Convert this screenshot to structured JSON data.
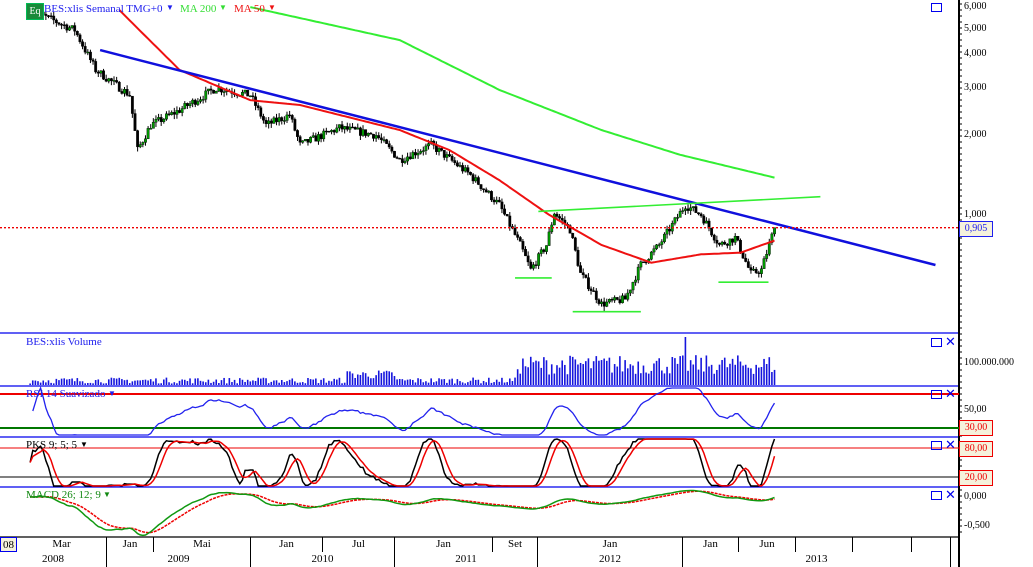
{
  "header": {
    "logo": "Eq",
    "title": "BES:xlis Semanal TMG+0",
    "ma200_label": "MA 200",
    "ma50_label": "MA 50"
  },
  "colors": {
    "up": "#009900",
    "down": "#000000",
    "ma200": "#33ee33",
    "ma50": "#ee1111",
    "trend": "#1010dd",
    "panel_border": "#0000ee"
  },
  "panels": {
    "volume": "BES:xlis Volume",
    "rsi": "RSI 14 Suavizado",
    "pks": "PKS 9; 5; 5",
    "macd": "MACD 26; 12; 9"
  },
  "price_axis": [
    "6,000",
    "5,000",
    "4,000",
    "3,000",
    "2,000",
    "1,000"
  ],
  "last_price": "0,905",
  "volume_axis": "100.000.000",
  "rsi_axis": {
    "mid": "50,00",
    "low": "30,00"
  },
  "pks_axis": {
    "high": "80,00",
    "low": "20,00"
  },
  "macd_axis": {
    "zero": "0,000",
    "neg": "-0,500"
  },
  "time_axis": {
    "months": [
      "08",
      "Mar",
      "Jan",
      "Mai",
      "Jan",
      "Jul",
      "Jan",
      "Set",
      "Jan",
      "Jan",
      "Jun",
      "",
      "",
      ""
    ],
    "years": [
      "2008",
      "2009",
      "2010",
      "2011",
      "2012",
      "2013"
    ]
  },
  "chart_data": {
    "type": "candlestick",
    "title": "BES:xlis Semanal TMG+0",
    "yscale": "log",
    "ylim": [
      0.376,
      6.2
    ],
    "xlim_weeks": [
      -11.5,
      354
    ],
    "close_keypoints": [
      [
        0,
        5.85
      ],
      [
        17,
        4.93
      ],
      [
        25,
        3.5
      ],
      [
        38,
        2.82
      ],
      [
        41,
        1.76
      ],
      [
        46,
        2.18
      ],
      [
        57,
        2.48
      ],
      [
        71,
        3.0
      ],
      [
        84,
        2.82
      ],
      [
        90,
        2.18
      ],
      [
        99,
        2.38
      ],
      [
        103,
        1.84
      ],
      [
        118,
        2.13
      ],
      [
        132,
        2.0
      ],
      [
        141,
        1.62
      ],
      [
        153,
        1.84
      ],
      [
        168,
        1.42
      ],
      [
        179,
        1.1
      ],
      [
        187,
        0.78
      ],
      [
        191,
        0.63
      ],
      [
        197,
        0.78
      ],
      [
        200,
        1.03
      ],
      [
        206,
        0.89
      ],
      [
        210,
        0.61
      ],
      [
        218,
        0.47
      ],
      [
        227,
        0.49
      ],
      [
        233,
        0.66
      ],
      [
        240,
        0.78
      ],
      [
        250,
        1.1
      ],
      [
        256,
        1.01
      ],
      [
        263,
        0.78
      ],
      [
        269,
        0.83
      ],
      [
        275,
        0.61
      ],
      [
        279,
        0.63
      ],
      [
        284,
        0.905
      ]
    ],
    "ma200_keypoints": [
      [
        84,
        6.0
      ],
      [
        141,
        4.52
      ],
      [
        179,
        2.95
      ],
      [
        218,
        2.09
      ],
      [
        248,
        1.69
      ],
      [
        284,
        1.39
      ]
    ],
    "ma50_keypoints": [
      [
        34,
        5.85
      ],
      [
        57,
        3.5
      ],
      [
        84,
        2.7
      ],
      [
        103,
        2.59
      ],
      [
        141,
        2.09
      ],
      [
        160,
        1.76
      ],
      [
        179,
        1.36
      ],
      [
        198,
        1.01
      ],
      [
        218,
        0.78
      ],
      [
        237,
        0.67
      ],
      [
        256,
        0.72
      ],
      [
        271,
        0.73
      ],
      [
        284,
        0.81
      ]
    ],
    "trendlines": [
      {
        "name": "downtrend",
        "color": "#1010dd",
        "points": [
          [
            26.7,
            4.15
          ],
          [
            345.4,
            0.657
          ]
        ]
      },
      {
        "name": "neckline",
        "color": "#33ee33",
        "points": [
          [
            193.9,
            1.04
          ],
          [
            301.5,
            1.18
          ]
        ]
      },
      {
        "name": "support-left",
        "color": "#33ee33",
        "points": [
          [
            185,
            0.588
          ],
          [
            199,
            0.588
          ]
        ]
      },
      {
        "name": "support-head",
        "color": "#33ee33",
        "points": [
          [
            207,
            0.44
          ],
          [
            233,
            0.44
          ]
        ]
      },
      {
        "name": "support-right",
        "color": "#33ee33",
        "points": [
          [
            262.6,
            0.567
          ],
          [
            281.7,
            0.567
          ]
        ]
      }
    ],
    "last_price_value": 0.905,
    "rsi_levels": [
      70,
      50,
      30
    ],
    "pks_levels": [
      80,
      20
    ],
    "macd_ticks": [
      0,
      -0.5
    ]
  }
}
